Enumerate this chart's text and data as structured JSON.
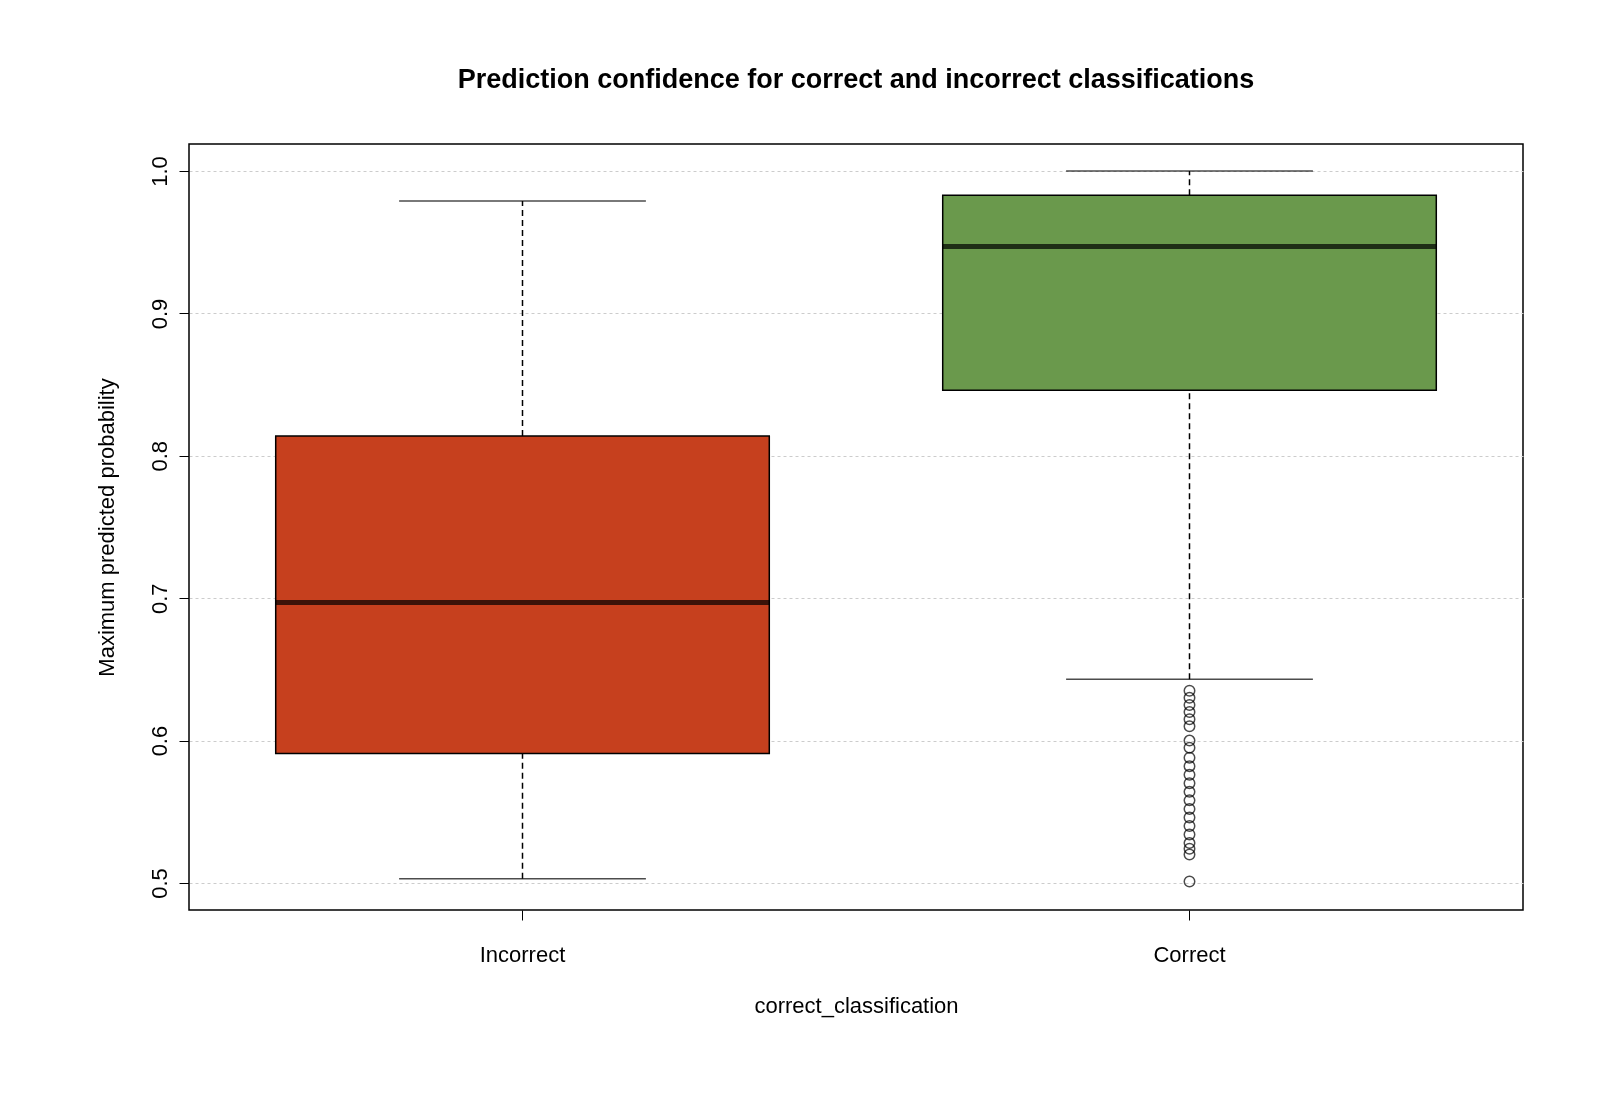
{
  "chart_data": {
    "type": "box",
    "title": "Prediction confidence for correct and incorrect classifications",
    "xlabel": "correct_classification",
    "ylabel": "Maximum predicted probability",
    "categories": [
      "Incorrect",
      "Correct"
    ],
    "colors": [
      "#c6401e",
      "#6a994c"
    ],
    "boxes": [
      {
        "low": 0.503,
        "q1": 0.591,
        "median": 0.697,
        "q3": 0.814,
        "high": 0.979
      },
      {
        "low": 0.643,
        "q1": 0.846,
        "median": 0.947,
        "q3": 0.983,
        "high": 1.0,
        "outliers": [
          0.635,
          0.63,
          0.625,
          0.62,
          0.615,
          0.61,
          0.6,
          0.595,
          0.588,
          0.582,
          0.576,
          0.57,
          0.564,
          0.558,
          0.552,
          0.546,
          0.54,
          0.534,
          0.528,
          0.524,
          0.52,
          0.501
        ]
      }
    ],
    "ylim": [
      0.481,
      1.019
    ],
    "yticks": [
      0.5,
      0.6,
      0.7,
      0.8,
      0.9,
      {
        "value": 1.0,
        "label": "1.0"
      }
    ],
    "grid": "y"
  }
}
